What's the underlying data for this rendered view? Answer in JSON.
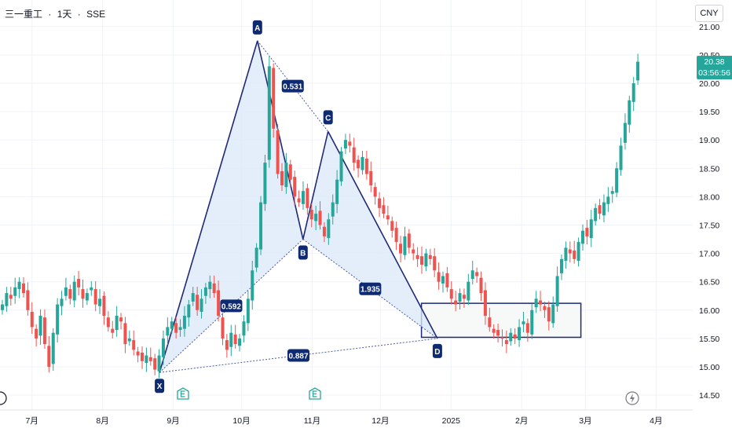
{
  "header": {
    "symbol": "三一重工",
    "sep1": "·",
    "interval": "1天",
    "sep2": "·",
    "exchange": "SSE"
  },
  "currency_button": "CNY",
  "price_tag": {
    "price": "20.38",
    "countdown": "03:56:56"
  },
  "colors": {
    "up": "#26a69a",
    "down": "#ef5350",
    "pattern_line": "#1e2a78",
    "pattern_fill": "#dbe8f8",
    "ratio_line": "#4a5aa8",
    "label_bg": "#0d2a73",
    "grid": "#f0f3fa",
    "box_fill": "#f7f8f8"
  },
  "icons": {
    "event_markers": [
      "earnings-e-icon",
      "earnings-e-icon"
    ],
    "left_marker": "dividend-d-icon",
    "right_marker": "lightning-icon"
  },
  "chart_data": {
    "type": "candlestick",
    "title": "",
    "x_axis": {
      "tick_labels": [
        "7月",
        "8月",
        "9月",
        "10月",
        "11月",
        "12月",
        "2025",
        "2月",
        "3月",
        "4月"
      ]
    },
    "y_axis": {
      "range": [
        14.3,
        21.1
      ],
      "ticks": [
        14.5,
        15.0,
        15.5,
        16.0,
        16.5,
        17.0,
        17.5,
        18.0,
        18.5,
        19.0,
        19.5,
        20.0,
        20.5,
        21.0
      ],
      "tick_labels": [
        "14.50",
        "15.00",
        "15.50",
        "16.00",
        "16.50",
        "17.00",
        "17.50",
        "18.00",
        "18.50",
        "19.00",
        "19.50",
        "20.00",
        "20.50",
        "21.00"
      ]
    },
    "last_price": 20.38,
    "pattern": {
      "points": [
        {
          "label": "X",
          "date": "2024-08-26",
          "price": 14.9
        },
        {
          "label": "A",
          "date": "2024-10-08",
          "price": 20.75
        },
        {
          "label": "B",
          "date": "2024-10-28",
          "price": 17.25
        },
        {
          "label": "C",
          "date": "2024-11-08",
          "price": 19.15
        },
        {
          "label": "D",
          "date": "2024-12-26",
          "price": 15.5
        }
      ],
      "ratios": [
        {
          "between": "X-B",
          "value": "0.592"
        },
        {
          "between": "A-C",
          "value": "0.531"
        },
        {
          "between": "B-D",
          "value": "1.935"
        },
        {
          "between": "X-D",
          "value": "0.887"
        }
      ],
      "target_zone": {
        "price_low": 15.52,
        "price_high": 16.12,
        "date_start": "2024-12-19",
        "date_end": "2025-02-27"
      }
    },
    "closes": [
      16.1,
      16.3,
      16.2,
      16.4,
      16.5,
      16.3,
      16.0,
      15.7,
      15.5,
      15.9,
      15.4,
      15.0,
      15.6,
      16.1,
      16.2,
      16.4,
      16.2,
      16.5,
      16.4,
      16.2,
      16.3,
      16.4,
      16.1,
      16.2,
      15.9,
      15.7,
      15.6,
      15.9,
      15.8,
      15.4,
      15.5,
      15.3,
      15.2,
      15.1,
      15.2,
      15.1,
      14.95,
      15.2,
      15.5,
      15.7,
      15.8,
      15.6,
      15.7,
      15.9,
      16.1,
      16.3,
      16.0,
      16.2,
      16.4,
      16.5,
      16.3,
      15.9,
      15.5,
      15.3,
      15.6,
      15.4,
      15.5,
      15.8,
      16.2,
      16.7,
      17.1,
      17.9,
      18.6,
      20.3,
      19.2,
      18.4,
      18.2,
      18.6,
      18.3,
      18.0,
      17.9,
      18.1,
      17.8,
      17.6,
      17.7,
      17.5,
      17.3,
      17.6,
      17.9,
      18.3,
      18.8,
      19.0,
      18.9,
      18.6,
      18.5,
      18.7,
      18.4,
      18.2,
      18.0,
      17.8,
      17.7,
      17.6,
      17.4,
      17.2,
      17.0,
      17.3,
      17.1,
      17.0,
      16.9,
      16.8,
      17.0,
      16.9,
      16.7,
      16.5,
      16.6,
      16.4,
      16.2,
      16.1,
      16.3,
      16.2,
      16.5,
      16.7,
      16.6,
      16.3,
      15.9,
      15.7,
      15.6,
      15.55,
      15.5,
      15.4,
      15.6,
      15.5,
      15.7,
      15.8,
      15.6,
      16.0,
      16.2,
      16.1,
      16.0,
      15.8,
      16.1,
      16.6,
      16.9,
      17.1,
      17.0,
      16.9,
      17.2,
      17.4,
      17.3,
      17.6,
      17.8,
      17.7,
      17.9,
      18.0,
      18.1,
      18.5,
      18.9,
      19.3,
      19.7,
      20.0,
      20.38
    ]
  }
}
